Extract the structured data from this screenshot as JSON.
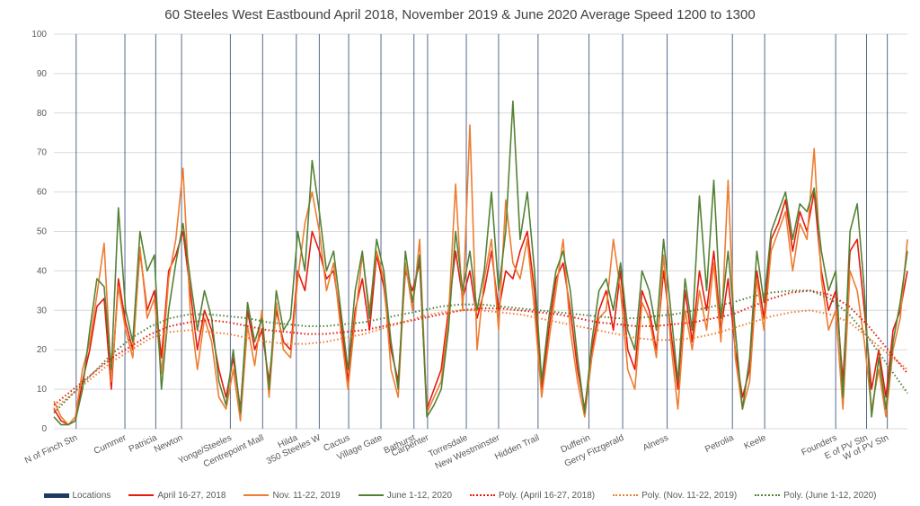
{
  "chart_data": {
    "type": "line",
    "title": "60 Steeles West Eastbound April 2018, November 2019 & June 2020 Average Speed 1200 to 1300",
    "xlabel": "",
    "ylabel": "",
    "ylim": [
      0,
      100
    ],
    "yticks": [
      0,
      10,
      20,
      30,
      40,
      50,
      60,
      70,
      80,
      90,
      100
    ],
    "grid": true,
    "legend_position": "bottom",
    "x_samples": 120,
    "locations": [
      {
        "name": "N of Finch Stn",
        "x": 3.1
      },
      {
        "name": "Cummer",
        "x": 9.9
      },
      {
        "name": "Patricia",
        "x": 14.2
      },
      {
        "name": "Newton",
        "x": 17.8
      },
      {
        "name": "Yonge/Steeles",
        "x": 24.6
      },
      {
        "name": "Centrepoint Mall",
        "x": 29.1
      },
      {
        "name": "Hilda",
        "x": 33.8
      },
      {
        "name": "350 Steeles W",
        "x": 37.0
      },
      {
        "name": "Cactus",
        "x": 41.1
      },
      {
        "name": "Village Gate",
        "x": 45.6
      },
      {
        "name": "Bathurst",
        "x": 50.2
      },
      {
        "name": "Carpenter",
        "x": 52.1
      },
      {
        "name": "Torresdale",
        "x": 57.5
      },
      {
        "name": "New Westminster",
        "x": 62.0
      },
      {
        "name": "Hidden Trail",
        "x": 67.5
      },
      {
        "name": "Dufferin",
        "x": 74.6
      },
      {
        "name": "Gerry Fitzgerald",
        "x": 79.3
      },
      {
        "name": "Alness",
        "x": 85.5
      },
      {
        "name": "Petrolia",
        "x": 94.6
      },
      {
        "name": "Keele",
        "x": 99.1
      },
      {
        "name": "Founders",
        "x": 109.0
      },
      {
        "name": "E of PV Stn",
        "x": 113.3
      },
      {
        "name": "W of PV Stn",
        "x": 116.2
      }
    ],
    "series": [
      {
        "name": "April 16-27, 2018",
        "color": "#E81A0C",
        "style": "solid",
        "values": [
          5,
          2,
          1,
          2,
          12,
          20,
          31,
          33,
          10,
          38,
          27,
          20,
          45,
          30,
          35,
          18,
          40,
          44,
          50,
          35,
          20,
          30,
          25,
          15,
          8,
          18,
          5,
          30,
          20,
          25,
          12,
          30,
          22,
          20,
          40,
          35,
          50,
          45,
          38,
          40,
          28,
          12,
          30,
          38,
          25,
          44,
          36,
          20,
          12,
          40,
          35,
          42,
          5,
          10,
          15,
          30,
          45,
          33,
          40,
          28,
          35,
          45,
          30,
          40,
          38,
          45,
          50,
          35,
          10,
          25,
          38,
          42,
          30,
          15,
          5,
          20,
          30,
          35,
          25,
          40,
          20,
          15,
          35,
          30,
          20,
          40,
          25,
          10,
          35,
          22,
          40,
          30,
          45,
          25,
          38,
          20,
          8,
          15,
          40,
          28,
          48,
          52,
          58,
          45,
          55,
          50,
          60,
          40,
          30,
          35,
          12,
          45,
          48,
          30,
          10,
          20,
          8,
          25,
          30,
          40
        ]
      },
      {
        "name": "Nov. 11-22, 2019",
        "color": "#ED7D31",
        "style": "solid",
        "values": [
          7,
          3,
          1,
          3,
          15,
          22,
          34,
          47,
          12,
          36,
          25,
          18,
          46,
          28,
          33,
          14,
          38,
          48,
          66,
          30,
          15,
          28,
          22,
          8,
          5,
          15,
          2,
          26,
          16,
          30,
          8,
          32,
          20,
          18,
          38,
          52,
          60,
          50,
          35,
          42,
          25,
          10,
          28,
          44,
          30,
          45,
          38,
          15,
          8,
          42,
          30,
          48,
          4,
          8,
          12,
          28,
          62,
          30,
          77,
          20,
          38,
          48,
          25,
          58,
          42,
          38,
          48,
          30,
          8,
          22,
          35,
          48,
          25,
          12,
          3,
          18,
          28,
          30,
          48,
          35,
          15,
          10,
          32,
          28,
          18,
          44,
          22,
          5,
          30,
          20,
          35,
          25,
          42,
          22,
          63,
          18,
          5,
          12,
          38,
          25,
          45,
          50,
          55,
          40,
          52,
          48,
          71,
          38,
          25,
          30,
          5,
          40,
          35,
          22,
          5,
          15,
          3,
          20,
          28,
          48
        ]
      },
      {
        "name": "June 1-12, 2020",
        "color": "#548235",
        "style": "solid",
        "values": [
          3,
          1,
          1,
          2,
          10,
          25,
          38,
          36,
          15,
          56,
          30,
          22,
          50,
          40,
          44,
          10,
          30,
          42,
          52,
          38,
          25,
          35,
          28,
          12,
          6,
          20,
          4,
          32,
          22,
          28,
          10,
          35,
          25,
          28,
          50,
          40,
          68,
          55,
          40,
          45,
          30,
          15,
          35,
          45,
          28,
          48,
          40,
          22,
          10,
          45,
          32,
          44,
          3,
          6,
          10,
          25,
          50,
          35,
          45,
          30,
          40,
          60,
          35,
          50,
          83,
          48,
          60,
          40,
          12,
          28,
          40,
          45,
          35,
          18,
          4,
          22,
          35,
          38,
          30,
          42,
          25,
          20,
          40,
          35,
          25,
          48,
          30,
          12,
          38,
          25,
          59,
          35,
          63,
          28,
          45,
          25,
          5,
          18,
          45,
          32,
          50,
          55,
          60,
          48,
          57,
          55,
          61,
          45,
          35,
          40,
          8,
          50,
          57,
          35,
          3,
          18,
          5,
          22,
          32,
          45
        ]
      },
      {
        "name": "Poly. (April 16-27, 2018)",
        "color": "#E81A0C",
        "style": "dotted",
        "values": [
          6,
          10,
          14,
          18,
          21,
          24,
          26,
          27,
          27.5,
          27,
          26,
          25,
          24.5,
          24,
          24,
          24.5,
          25,
          26,
          27,
          28,
          29,
          30,
          30.5,
          30.5,
          30,
          29.5,
          29,
          28,
          27,
          26.5,
          26,
          26,
          26.5,
          27,
          28,
          29,
          31,
          33,
          34.5,
          35,
          34,
          31,
          26,
          20,
          14
        ]
      },
      {
        "name": "Poly. (Nov. 11-22, 2019)",
        "color": "#ED7D31",
        "style": "dotted",
        "values": [
          5,
          9,
          13,
          17,
          20,
          23,
          24.5,
          25,
          24.5,
          24,
          23,
          22,
          21.5,
          21.5,
          22,
          23,
          24,
          25.5,
          27,
          28.5,
          29.5,
          30,
          30,
          29.5,
          29,
          28,
          27,
          26,
          25,
          24,
          23,
          22.5,
          22.5,
          23,
          24,
          25.5,
          27,
          28.5,
          29.5,
          30,
          29,
          27,
          23,
          19,
          15
        ]
      },
      {
        "name": "Poly. (June 1-12, 2020)",
        "color": "#548235",
        "style": "dotted",
        "values": [
          4,
          9,
          14,
          19,
          23,
          26,
          28,
          29,
          29,
          28.5,
          28,
          27,
          26.5,
          26,
          26,
          26.5,
          27,
          28,
          29,
          30,
          31,
          31.5,
          31.5,
          31,
          30.5,
          30,
          29.5,
          29,
          28.5,
          28,
          28,
          28.5,
          29,
          30,
          31,
          32,
          33.5,
          34.5,
          35,
          35,
          33,
          29,
          23,
          16,
          9
        ]
      }
    ],
    "legend": [
      "Locations",
      "April 16-27, 2018",
      "Nov. 11-22, 2019",
      "June 1-12, 2020",
      "Poly. (April 16-27, 2018)",
      "Poly. (Nov. 11-22, 2019)",
      "Poly. (June 1-12, 2020)"
    ],
    "location_line_color": "#1F3864"
  }
}
